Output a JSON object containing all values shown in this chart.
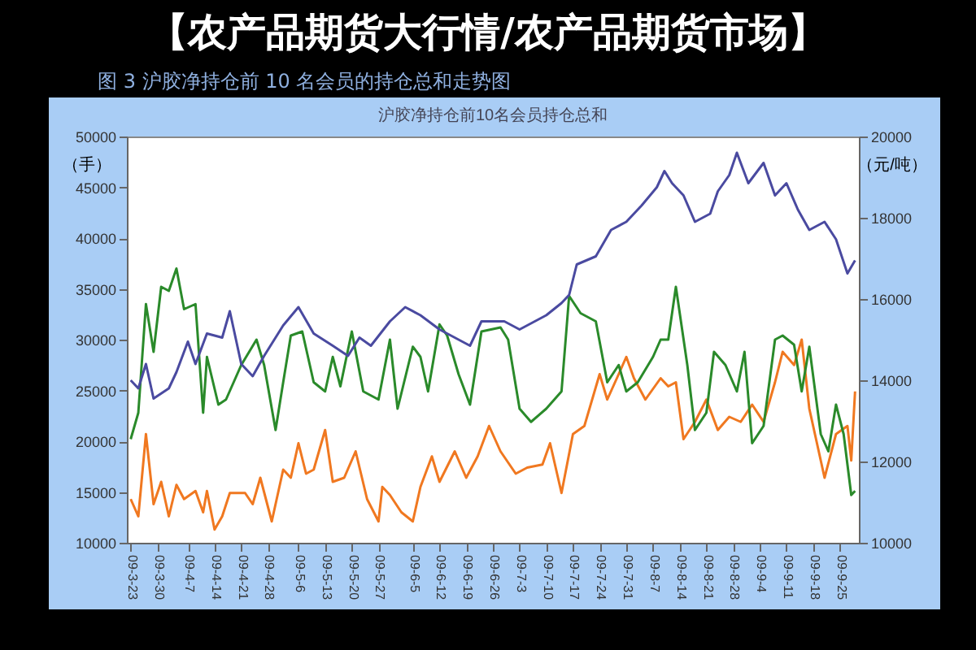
{
  "chart_data": {
    "type": "line",
    "title": "沪胶净持仓前10名会员持仓总和",
    "subtitle": "图 3   沪胶净持仓前 10 名会员的持仓总和走势图",
    "annotations": [
      "【农产品期货大行情/农产品期货市场】"
    ],
    "ylabel": "（手）",
    "y2label": "（元/吨）",
    "xlim": [
      "--03-22",
      "--09-30"
    ],
    "xticks": [
      {
        "value": "--03-23",
        "label": "09-3-23"
      },
      {
        "value": "--03-30",
        "label": "09-3-30"
      },
      {
        "value": "--04-07",
        "label": "09-4-7"
      },
      {
        "value": "--04-14",
        "label": "09-4-14"
      },
      {
        "value": "--04-21",
        "label": "09-4-21"
      },
      {
        "value": "--04-28",
        "label": "09-4-28"
      },
      {
        "value": "--05-06",
        "label": "09-5-6"
      },
      {
        "value": "--05-13",
        "label": "09-5-13"
      },
      {
        "value": "--05-20",
        "label": "09-5-20"
      },
      {
        "value": "--05-27",
        "label": "09-5-27"
      },
      {
        "value": "--06-05",
        "label": "09-6-5"
      },
      {
        "value": "--06-12",
        "label": "09-6-12"
      },
      {
        "value": "--06-19",
        "label": "09-6-19"
      },
      {
        "value": "--06-26",
        "label": "09-6-26"
      },
      {
        "value": "--07-03",
        "label": "09-7-3"
      },
      {
        "value": "--07-10",
        "label": "09-7-10"
      },
      {
        "value": "--07-17",
        "label": "09-7-17"
      },
      {
        "value": "--07-24",
        "label": "09-7-24"
      },
      {
        "value": "--07-31",
        "label": "09-7-31"
      },
      {
        "value": "--08-07",
        "label": "09-8-7"
      },
      {
        "value": "--08-14",
        "label": "09-8-14"
      },
      {
        "value": "--08-21",
        "label": "09-8-21"
      },
      {
        "value": "--08-28",
        "label": "09-8-28"
      },
      {
        "value": "--09-04",
        "label": "09-9-4"
      },
      {
        "value": "--09-11",
        "label": "09-9-11"
      },
      {
        "value": "--09-18",
        "label": "09-9-18"
      },
      {
        "value": "--09-25",
        "label": "09-9-25"
      }
    ],
    "ylim": [
      10000,
      50000
    ],
    "yticks": [
      10000,
      15000,
      20000,
      25000,
      30000,
      35000,
      40000,
      45000,
      50000
    ],
    "y2lim": [
      10000,
      20000
    ],
    "y2ticks": [
      10000,
      12000,
      14000,
      16000,
      18000,
      20000
    ],
    "grid": false,
    "marker": "none",
    "line_style": "solid",
    "series": [
      {
        "color": "#f07820",
        "x": [
          "--03-23",
          "--03-25",
          "--03-27",
          "--03-29",
          "--03-31",
          "--04-02",
          "--04-04",
          "--04-06",
          "--04-09",
          "--04-11",
          "--04-12",
          "--04-14",
          "--04-16",
          "--04-18",
          "--04-22",
          "--04-24",
          "--04-26",
          "--04-29",
          "--05-02",
          "--05-04",
          "--05-06",
          "--05-08",
          "--05-10",
          "--05-13",
          "--05-15",
          "--05-18",
          "--05-21",
          "--05-24",
          "--05-27",
          "--05-28",
          "--05-30",
          "--06-02",
          "--06-05",
          "--06-07",
          "--06-10",
          "--06-12",
          "--06-16",
          "--06-19",
          "--06-22",
          "--06-25",
          "--06-28",
          "--07-02",
          "--07-05",
          "--07-09",
          "--07-11",
          "--07-14",
          "--07-17",
          "--07-20",
          "--07-24",
          "--07-26",
          "--07-29",
          "--07-31",
          "--08-02",
          "--08-05",
          "--08-09",
          "--08-11",
          "--08-13",
          "--08-15",
          "--08-18",
          "--08-21",
          "--08-24",
          "--08-27",
          "--08-30",
          "--09-02",
          "--09-05",
          "--09-08",
          "--09-10",
          "--09-13",
          "--09-15",
          "--09-17",
          "--09-20",
          "--09-21",
          "--09-24",
          "--09-27",
          "--09-28",
          "--09-29"
        ],
        "values": [
          14300,
          12600,
          20700,
          13800,
          16000,
          12600,
          15700,
          14300,
          15100,
          13000,
          15100,
          11300,
          12600,
          14900,
          14900,
          13800,
          16400,
          12100,
          17200,
          16400,
          19800,
          16800,
          17200,
          21100,
          16000,
          16400,
          19000,
          14300,
          12100,
          15500,
          14700,
          13000,
          12100,
          15500,
          18500,
          16000,
          19000,
          16400,
          18500,
          21500,
          19000,
          16800,
          17400,
          17700,
          19800,
          14900,
          20700,
          21500,
          26600,
          24100,
          26600,
          28300,
          26200,
          24100,
          26200,
          25400,
          25800,
          20200,
          21900,
          24100,
          21100,
          22400,
          21900,
          23600,
          21900,
          25800,
          28800,
          27500,
          30000,
          23200,
          18100,
          16400,
          20700,
          21500,
          18100,
          24900
        ]
      },
      {
        "color": "#2a8a2a",
        "x": [
          "--03-23",
          "--03-25",
          "--03-27",
          "--03-29",
          "--03-31",
          "--04-02",
          "--04-04",
          "--04-06",
          "--04-09",
          "--04-11",
          "--04-12",
          "--04-15",
          "--04-17",
          "--04-19",
          "--04-21",
          "--04-25",
          "--04-27",
          "--04-30",
          "--05-02",
          "--05-04",
          "--05-07",
          "--05-10",
          "--05-13",
          "--05-15",
          "--05-17",
          "--05-20",
          "--05-23",
          "--05-27",
          "--05-30",
          "--06-01",
          "--06-05",
          "--06-07",
          "--06-09",
          "--06-12",
          "--06-14",
          "--06-17",
          "--06-20",
          "--06-23",
          "--06-28",
          "--06-30",
          "--07-03",
          "--07-06",
          "--07-10",
          "--07-14",
          "--07-16",
          "--07-19",
          "--07-23",
          "--07-26",
          "--07-29",
          "--07-31",
          "--08-03",
          "--08-07",
          "--08-09",
          "--08-11",
          "--08-13",
          "--08-16",
          "--08-18",
          "--08-21",
          "--08-23",
          "--08-26",
          "--08-29",
          "--08-31",
          "--09-02",
          "--09-05",
          "--09-08",
          "--09-10",
          "--09-13",
          "--09-15",
          "--09-17",
          "--09-20",
          "--09-22",
          "--09-24",
          "--09-26",
          "--09-28",
          "--09-29"
        ],
        "values": [
          20200,
          22800,
          33500,
          28800,
          35200,
          34800,
          37000,
          33000,
          33500,
          22800,
          28300,
          23600,
          24100,
          25800,
          27500,
          30000,
          27500,
          21100,
          25800,
          30400,
          30800,
          25800,
          24900,
          28300,
          25400,
          30800,
          24900,
          24100,
          30000,
          23200,
          29300,
          28300,
          24900,
          31500,
          30400,
          26600,
          23600,
          30800,
          31200,
          30000,
          23200,
          21900,
          23200,
          24900,
          34300,
          32600,
          31800,
          25800,
          27500,
          24900,
          25800,
          28300,
          30000,
          30000,
          35200,
          27500,
          21100,
          22800,
          28800,
          27500,
          24900,
          28800,
          19800,
          21500,
          30000,
          30400,
          29500,
          24900,
          29300,
          20700,
          19000,
          23600,
          20700,
          14700,
          15100
        ]
      },
      {
        "color": "#4a4aa0",
        "axis": "y2",
        "x": [
          "--03-23",
          "--03-25",
          "--03-27",
          "--03-29",
          "--04-02",
          "--04-04",
          "--04-07",
          "--04-09",
          "--04-12",
          "--04-16",
          "--04-18",
          "--04-21",
          "--04-24",
          "--04-27",
          "--05-02",
          "--05-06",
          "--05-10",
          "--05-15",
          "--05-19",
          "--05-22",
          "--05-25",
          "--05-30",
          "--06-03",
          "--06-07",
          "--06-12",
          "--06-16",
          "--06-20",
          "--06-23",
          "--06-29",
          "--07-03",
          "--07-10",
          "--07-14",
          "--07-16",
          "--07-18",
          "--07-23",
          "--07-27",
          "--07-31",
          "--08-04",
          "--08-08",
          "--08-10",
          "--08-12",
          "--08-15",
          "--08-18",
          "--08-22",
          "--08-24",
          "--08-27",
          "--08-29",
          "--09-01",
          "--09-05",
          "--09-08",
          "--09-11",
          "--09-14",
          "--09-17",
          "--09-21",
          "--09-24",
          "--09-27",
          "--09-29"
        ],
        "values": [
          14000,
          13800,
          14400,
          13550,
          13800,
          14200,
          14950,
          14400,
          15150,
          15050,
          15700,
          14400,
          14100,
          14600,
          15350,
          15800,
          15150,
          14850,
          14600,
          15050,
          14850,
          15450,
          15800,
          15600,
          15250,
          15050,
          14850,
          15450,
          15450,
          15250,
          15600,
          15900,
          16100,
          16850,
          17050,
          17700,
          17900,
          18300,
          18750,
          19150,
          18850,
          18550,
          17900,
          18100,
          18650,
          19050,
          19600,
          18850,
          19350,
          18550,
          18850,
          18200,
          17700,
          17900,
          17470,
          16630,
          16950
        ]
      }
    ]
  }
}
